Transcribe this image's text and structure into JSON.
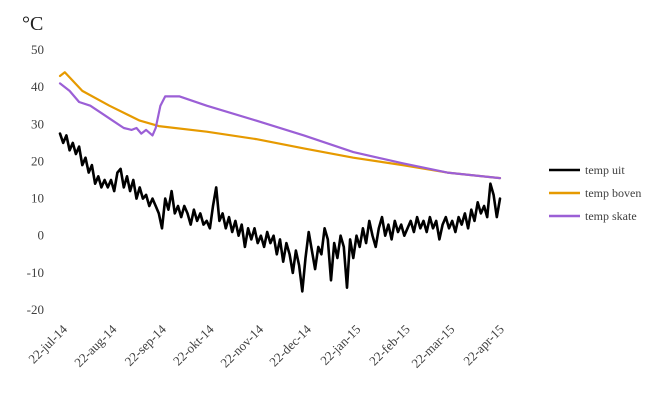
{
  "chart_data": {
    "type": "line",
    "title": "",
    "ylabel": "°C",
    "xlabel": "",
    "ylim": [
      -20,
      50
    ],
    "yticks": [
      50,
      40,
      30,
      20,
      10,
      0,
      -10,
      -20
    ],
    "x_tick_labels": [
      "22-jul-14",
      "22-aug-14",
      "22-sep-14",
      "22-okt-14",
      "22-nov-14",
      "22-dec-14",
      "22-jan-15",
      "22-feb-15",
      "22-mar-15",
      "22-apr-15"
    ],
    "grid": false,
    "legend_position": "right",
    "series": [
      {
        "name": "temp uit",
        "color": "#000000",
        "points": [
          [
            "2014-07-22",
            27.5
          ],
          [
            "2014-07-24",
            25
          ],
          [
            "2014-07-26",
            27
          ],
          [
            "2014-07-28",
            23
          ],
          [
            "2014-07-30",
            25
          ],
          [
            "2014-08-01",
            22
          ],
          [
            "2014-08-03",
            24
          ],
          [
            "2014-08-05",
            19
          ],
          [
            "2014-08-07",
            21
          ],
          [
            "2014-08-09",
            17
          ],
          [
            "2014-08-11",
            19
          ],
          [
            "2014-08-13",
            14
          ],
          [
            "2014-08-15",
            16
          ],
          [
            "2014-08-17",
            13
          ],
          [
            "2014-08-19",
            15
          ],
          [
            "2014-08-21",
            13
          ],
          [
            "2014-08-23",
            15
          ],
          [
            "2014-08-25",
            12
          ],
          [
            "2014-08-27",
            17
          ],
          [
            "2014-08-29",
            18
          ],
          [
            "2014-08-31",
            13
          ],
          [
            "2014-09-02",
            16
          ],
          [
            "2014-09-04",
            12
          ],
          [
            "2014-09-06",
            15
          ],
          [
            "2014-09-08",
            10
          ],
          [
            "2014-09-10",
            13
          ],
          [
            "2014-09-12",
            10
          ],
          [
            "2014-09-14",
            11
          ],
          [
            "2014-09-16",
            8
          ],
          [
            "2014-09-18",
            10
          ],
          [
            "2014-09-20",
            8
          ],
          [
            "2014-09-22",
            6
          ],
          [
            "2014-09-24",
            2
          ],
          [
            "2014-09-26",
            10
          ],
          [
            "2014-09-28",
            7
          ],
          [
            "2014-09-30",
            12
          ],
          [
            "2014-10-02",
            6
          ],
          [
            "2014-10-04",
            8
          ],
          [
            "2014-10-06",
            5
          ],
          [
            "2014-10-08",
            8
          ],
          [
            "2014-10-10",
            6
          ],
          [
            "2014-10-12",
            3
          ],
          [
            "2014-10-14",
            7
          ],
          [
            "2014-10-16",
            4
          ],
          [
            "2014-10-18",
            6
          ],
          [
            "2014-10-20",
            3
          ],
          [
            "2014-10-22",
            4
          ],
          [
            "2014-10-24",
            2
          ],
          [
            "2014-10-26",
            8
          ],
          [
            "2014-10-28",
            13
          ],
          [
            "2014-10-30",
            4
          ],
          [
            "2014-11-01",
            6
          ],
          [
            "2014-11-03",
            2
          ],
          [
            "2014-11-05",
            5
          ],
          [
            "2014-11-07",
            1
          ],
          [
            "2014-11-09",
            4
          ],
          [
            "2014-11-11",
            0
          ],
          [
            "2014-11-13",
            3
          ],
          [
            "2014-11-15",
            -3
          ],
          [
            "2014-11-17",
            2
          ],
          [
            "2014-11-19",
            -1
          ],
          [
            "2014-11-21",
            2
          ],
          [
            "2014-11-23",
            -2
          ],
          [
            "2014-11-25",
            0
          ],
          [
            "2014-11-27",
            -3
          ],
          [
            "2014-11-29",
            1
          ],
          [
            "2014-12-01",
            -2
          ],
          [
            "2014-12-03",
            0
          ],
          [
            "2014-12-05",
            -5
          ],
          [
            "2014-12-07",
            -1
          ],
          [
            "2014-12-09",
            -7
          ],
          [
            "2014-12-11",
            -2
          ],
          [
            "2014-12-13",
            -5
          ],
          [
            "2014-12-15",
            -10
          ],
          [
            "2014-12-17",
            -4
          ],
          [
            "2014-12-19",
            -8
          ],
          [
            "2014-12-21",
            -15
          ],
          [
            "2014-12-23",
            -6
          ],
          [
            "2014-12-25",
            1
          ],
          [
            "2014-12-27",
            -4
          ],
          [
            "2014-12-29",
            -9
          ],
          [
            "2014-12-31",
            -3
          ],
          [
            "2015-01-02",
            -5
          ],
          [
            "2015-01-04",
            2
          ],
          [
            "2015-01-06",
            -1
          ],
          [
            "2015-01-08",
            -12
          ],
          [
            "2015-01-10",
            -2
          ],
          [
            "2015-01-12",
            -6
          ],
          [
            "2015-01-14",
            0
          ],
          [
            "2015-01-16",
            -3
          ],
          [
            "2015-01-18",
            -14
          ],
          [
            "2015-01-20",
            -1
          ],
          [
            "2015-01-22",
            -6
          ],
          [
            "2015-01-24",
            0
          ],
          [
            "2015-01-26",
            -3
          ],
          [
            "2015-01-28",
            2
          ],
          [
            "2015-01-30",
            -2
          ],
          [
            "2015-02-01",
            4
          ],
          [
            "2015-02-03",
            0
          ],
          [
            "2015-02-05",
            -3
          ],
          [
            "2015-02-07",
            2
          ],
          [
            "2015-02-09",
            5
          ],
          [
            "2015-02-11",
            0
          ],
          [
            "2015-02-13",
            3
          ],
          [
            "2015-02-15",
            -1
          ],
          [
            "2015-02-17",
            4
          ],
          [
            "2015-02-19",
            1
          ],
          [
            "2015-02-21",
            3
          ],
          [
            "2015-02-23",
            0
          ],
          [
            "2015-02-25",
            2
          ],
          [
            "2015-02-27",
            4
          ],
          [
            "2015-03-01",
            1
          ],
          [
            "2015-03-03",
            5
          ],
          [
            "2015-03-05",
            2
          ],
          [
            "2015-03-07",
            4
          ],
          [
            "2015-03-09",
            1
          ],
          [
            "2015-03-11",
            5
          ],
          [
            "2015-03-13",
            2
          ],
          [
            "2015-03-15",
            4
          ],
          [
            "2015-03-17",
            -1
          ],
          [
            "2015-03-19",
            3
          ],
          [
            "2015-03-21",
            5
          ],
          [
            "2015-03-23",
            2
          ],
          [
            "2015-03-25",
            4
          ],
          [
            "2015-03-27",
            1
          ],
          [
            "2015-03-29",
            5
          ],
          [
            "2015-03-31",
            3
          ],
          [
            "2015-04-02",
            6
          ],
          [
            "2015-04-04",
            2
          ],
          [
            "2015-04-06",
            7
          ],
          [
            "2015-04-08",
            4
          ],
          [
            "2015-04-10",
            9
          ],
          [
            "2015-04-12",
            6
          ],
          [
            "2015-04-14",
            8
          ],
          [
            "2015-04-16",
            5
          ],
          [
            "2015-04-18",
            14
          ],
          [
            "2015-04-20",
            11
          ],
          [
            "2015-04-22",
            5
          ],
          [
            "2015-04-24",
            10
          ]
        ]
      },
      {
        "name": "temp boven",
        "color": "#E69A00",
        "points": [
          [
            "2014-07-22",
            43
          ],
          [
            "2014-07-25",
            44
          ],
          [
            "2014-08-05",
            39
          ],
          [
            "2014-08-22",
            35
          ],
          [
            "2014-09-10",
            31
          ],
          [
            "2014-09-22",
            29.5
          ],
          [
            "2014-10-22",
            28
          ],
          [
            "2014-11-22",
            26
          ],
          [
            "2014-12-22",
            23.5
          ],
          [
            "2015-01-22",
            21
          ],
          [
            "2015-02-22",
            19
          ],
          [
            "2015-03-22",
            17
          ],
          [
            "2015-04-24",
            15.5
          ]
        ]
      },
      {
        "name": "temp skate",
        "color": "#9B5FD6",
        "points": [
          [
            "2014-07-22",
            41
          ],
          [
            "2014-07-28",
            39
          ],
          [
            "2014-08-03",
            36
          ],
          [
            "2014-08-10",
            35
          ],
          [
            "2014-08-17",
            33
          ],
          [
            "2014-08-24",
            31
          ],
          [
            "2014-08-31",
            29
          ],
          [
            "2014-09-05",
            28.5
          ],
          [
            "2014-09-08",
            29
          ],
          [
            "2014-09-11",
            27.5
          ],
          [
            "2014-09-14",
            28.5
          ],
          [
            "2014-09-18",
            27
          ],
          [
            "2014-09-20",
            29
          ],
          [
            "2014-09-23",
            35
          ],
          [
            "2014-09-26",
            37.5
          ],
          [
            "2014-10-05",
            37.5
          ],
          [
            "2014-10-22",
            35
          ],
          [
            "2014-11-22",
            31
          ],
          [
            "2014-12-22",
            27
          ],
          [
            "2015-01-22",
            22.5
          ],
          [
            "2015-02-22",
            19.5
          ],
          [
            "2015-03-22",
            17
          ],
          [
            "2015-04-24",
            15.5
          ]
        ]
      }
    ]
  }
}
